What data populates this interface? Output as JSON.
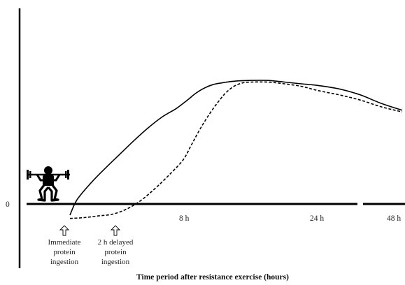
{
  "chart_data": {
    "type": "line",
    "title": "",
    "xlabel": "Time period after resistance exercise (hours)",
    "ylabel": "",
    "y_tick_labels": [
      "0"
    ],
    "x_tick_labels": [
      "8 h",
      "24 h",
      "48 h"
    ],
    "x_axis_break": true,
    "series": [
      {
        "style": "solid",
        "points": [
          [
            0.0,
            -0.13
          ],
          [
            0.5,
            0.05
          ],
          [
            1.5,
            0.25
          ],
          [
            2.5,
            0.42
          ],
          [
            3.5,
            0.58
          ],
          [
            4.5,
            0.74
          ],
          [
            5.5,
            0.89
          ],
          [
            6.5,
            1.02
          ],
          [
            7.5,
            1.12
          ],
          [
            8.5,
            1.22
          ],
          [
            9.5,
            1.3
          ],
          [
            10.5,
            1.36
          ],
          [
            11.5,
            1.4
          ],
          [
            12.5,
            1.42
          ],
          [
            14,
            1.44
          ],
          [
            16,
            1.45
          ],
          [
            18,
            1.45
          ],
          [
            20,
            1.43
          ],
          [
            22,
            1.41
          ],
          [
            24,
            1.39
          ],
          [
            26,
            1.35
          ],
          [
            28,
            1.28
          ],
          [
            30,
            1.18
          ],
          [
            32,
            1.1
          ]
        ]
      },
      {
        "style": "dashed",
        "points": [
          [
            0.0,
            -0.17
          ],
          [
            1,
            -0.16
          ],
          [
            2,
            -0.14
          ],
          [
            3,
            -0.12
          ],
          [
            4,
            -0.06
          ],
          [
            5,
            0.04
          ],
          [
            6,
            0.18
          ],
          [
            7,
            0.34
          ],
          [
            8,
            0.52
          ],
          [
            9,
            0.7
          ],
          [
            10,
            0.88
          ],
          [
            11,
            1.04
          ],
          [
            12,
            1.18
          ],
          [
            13,
            1.3
          ],
          [
            14,
            1.38
          ],
          [
            15,
            1.42
          ],
          [
            16,
            1.43
          ],
          [
            18,
            1.43
          ],
          [
            20,
            1.41
          ],
          [
            22,
            1.38
          ],
          [
            24,
            1.33
          ],
          [
            26,
            1.28
          ],
          [
            28,
            1.22
          ],
          [
            30,
            1.14
          ],
          [
            32,
            1.08
          ]
        ]
      }
    ],
    "annotations": [
      {
        "lines": [
          "Immediate",
          "protein",
          "ingestion"
        ],
        "x": 0.0
      },
      {
        "lines": [
          "2 h delayed",
          "protein",
          "ingestion"
        ],
        "x": 4.0
      }
    ],
    "icon": "weightlifter-icon"
  }
}
